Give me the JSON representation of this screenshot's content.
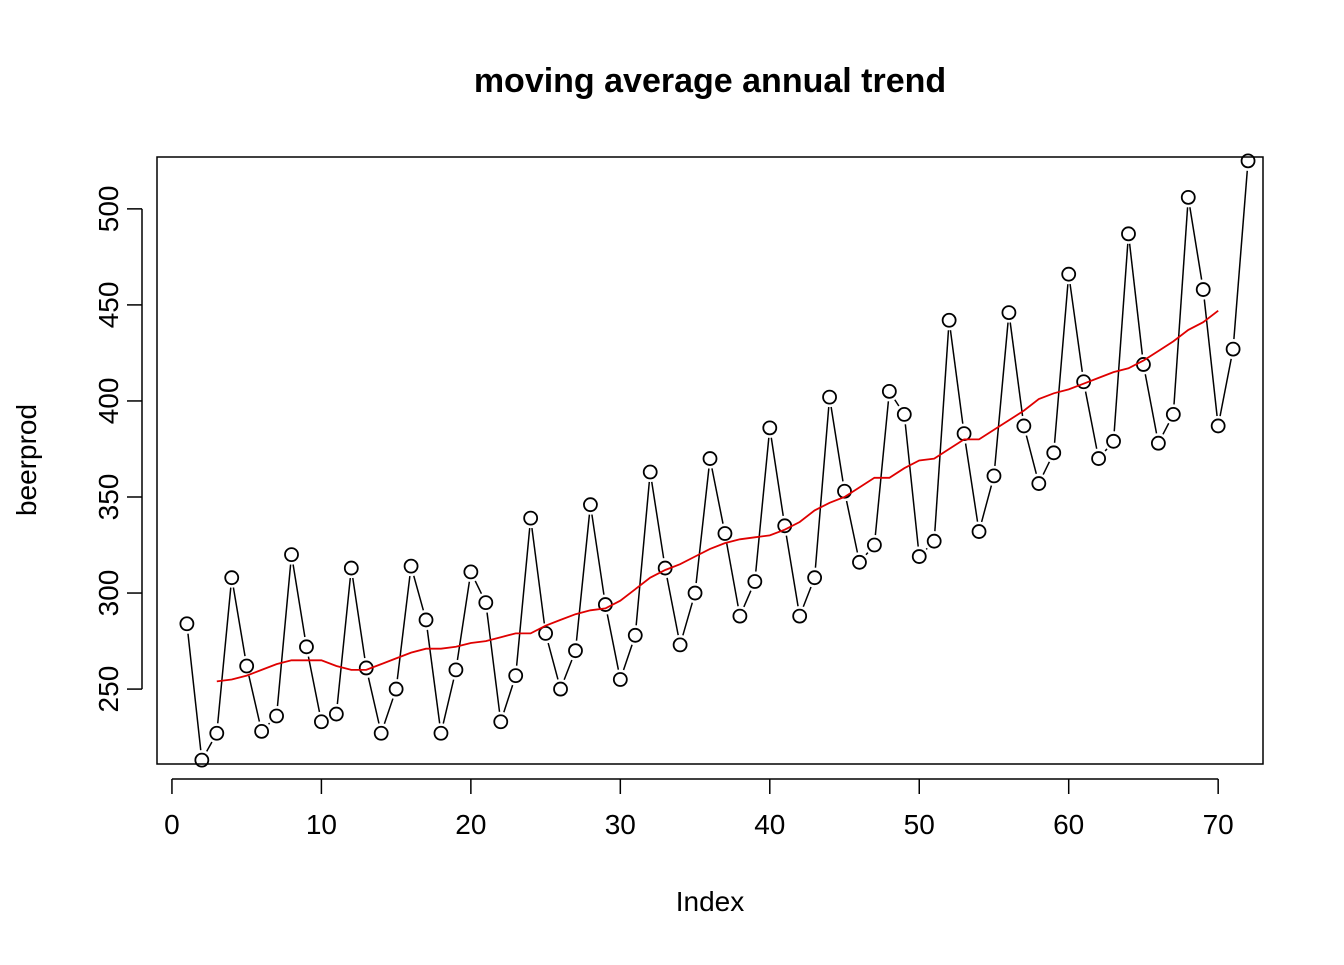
{
  "chart_data": {
    "type": "line",
    "title": "moving average annual trend",
    "xlabel": "Index",
    "ylabel": "beerprod",
    "xlim": [
      -1,
      73
    ],
    "ylim": [
      211,
      527
    ],
    "x_ticks": [
      0,
      10,
      20,
      30,
      40,
      50,
      60,
      70
    ],
    "y_ticks": [
      250,
      300,
      350,
      400,
      450,
      500
    ],
    "grid": false,
    "legend": "none",
    "series": [
      {
        "style": "overplotted points and lines",
        "color": "#000000",
        "x": [
          1,
          2,
          3,
          4,
          5,
          6,
          7,
          8,
          9,
          10,
          11,
          12,
          13,
          14,
          15,
          16,
          17,
          18,
          19,
          20,
          21,
          22,
          23,
          24,
          25,
          26,
          27,
          28,
          29,
          30,
          31,
          32,
          33,
          34,
          35,
          36,
          37,
          38,
          39,
          40,
          41,
          42,
          43,
          44,
          45,
          46,
          47,
          48,
          49,
          50,
          51,
          52,
          53,
          54,
          55,
          56,
          57,
          58,
          59,
          60,
          61,
          62,
          63,
          64,
          65,
          66,
          67,
          68,
          69,
          70,
          71,
          72
        ],
        "values": [
          284,
          213,
          227,
          308,
          262,
          228,
          236,
          320,
          272,
          233,
          237,
          313,
          261,
          227,
          250,
          314,
          286,
          227,
          260,
          311,
          295,
          233,
          257,
          339,
          279,
          250,
          270,
          346,
          294,
          255,
          278,
          363,
          313,
          273,
          300,
          370,
          331,
          288,
          306,
          386,
          335,
          288,
          308,
          402,
          353,
          316,
          325,
          405,
          393,
          319,
          327,
          442,
          383,
          332,
          361,
          446,
          387,
          357,
          373,
          466,
          410,
          370,
          379,
          487,
          419,
          378,
          393,
          506,
          458,
          387,
          427,
          525
        ]
      },
      {
        "style": "line",
        "color": "#df0000",
        "x": [
          3,
          4,
          5,
          6,
          7,
          8,
          9,
          10,
          11,
          12,
          13,
          14,
          15,
          16,
          17,
          18,
          19,
          20,
          21,
          22,
          23,
          24,
          25,
          26,
          27,
          28,
          29,
          30,
          31,
          32,
          33,
          34,
          35,
          36,
          37,
          38,
          39,
          40,
          41,
          42,
          43,
          44,
          45,
          46,
          47,
          48,
          49,
          50,
          51,
          52,
          53,
          54,
          55,
          56,
          57,
          58,
          59,
          60,
          61,
          62,
          63,
          64,
          65,
          66,
          67,
          68,
          69,
          70
        ],
        "values": [
          254,
          255,
          257,
          260,
          263,
          265,
          265,
          265,
          262,
          260,
          260,
          263,
          266,
          269,
          271,
          271,
          272,
          274,
          275,
          277,
          279,
          279,
          283,
          286,
          289,
          291,
          292,
          296,
          302,
          308,
          312,
          315,
          319,
          323,
          326,
          328,
          329,
          330,
          333,
          337,
          343,
          347,
          350,
          355,
          360,
          360,
          365,
          369,
          370,
          375,
          380,
          380,
          385,
          390,
          395,
          401,
          404,
          406,
          409,
          412,
          415,
          417,
          421,
          426,
          431,
          437,
          441,
          447
        ]
      }
    ]
  }
}
